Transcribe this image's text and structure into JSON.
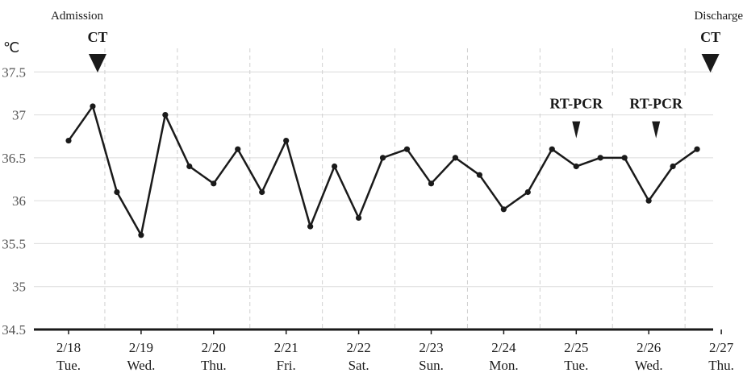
{
  "chart_data": {
    "type": "line",
    "unit": "℃",
    "ylim": [
      34.5,
      38.0
    ],
    "yticks": [
      "34.5",
      "35",
      "35.5",
      "36",
      "36.5",
      "37",
      "37.5"
    ],
    "days": [
      {
        "date": "2/18",
        "weekday": "Tue."
      },
      {
        "date": "2/19",
        "weekday": "Wed."
      },
      {
        "date": "2/20",
        "weekday": "Thu."
      },
      {
        "date": "2/21",
        "weekday": "Fri."
      },
      {
        "date": "2/22",
        "weekday": "Sat."
      },
      {
        "date": "2/23",
        "weekday": "Sun."
      },
      {
        "date": "2/24",
        "weekday": "Mon."
      },
      {
        "date": "2/25",
        "weekday": "Tue."
      },
      {
        "date": "2/26",
        "weekday": "Wed."
      },
      {
        "date": "2/27",
        "weekday": "Thu."
      }
    ],
    "series": [
      {
        "color": "#1a1a1a",
        "values": [
          36.7,
          37.1,
          36.1,
          35.6,
          37.0,
          36.4,
          36.2,
          36.6,
          36.1,
          36.7,
          35.7,
          36.4,
          35.8,
          36.5,
          36.6,
          36.2,
          36.5,
          36.3,
          35.9,
          36.1,
          36.6,
          36.4,
          36.5,
          36.5,
          36.0,
          36.4,
          36.6
        ]
      }
    ],
    "annotations": [
      {
        "label": "CT",
        "day_pos": 0.4,
        "marker": "large-triangle"
      },
      {
        "label": "RT-PCR",
        "day_pos": 7.0,
        "marker": "small-triangle"
      },
      {
        "label": "RT-PCR",
        "day_pos": 8.1,
        "marker": "small-triangle"
      },
      {
        "label": "CT",
        "day_pos": 8.85,
        "marker": "large-triangle"
      }
    ],
    "edge_labels": {
      "start": "Admission",
      "end": "Discharge"
    },
    "grid": true
  }
}
